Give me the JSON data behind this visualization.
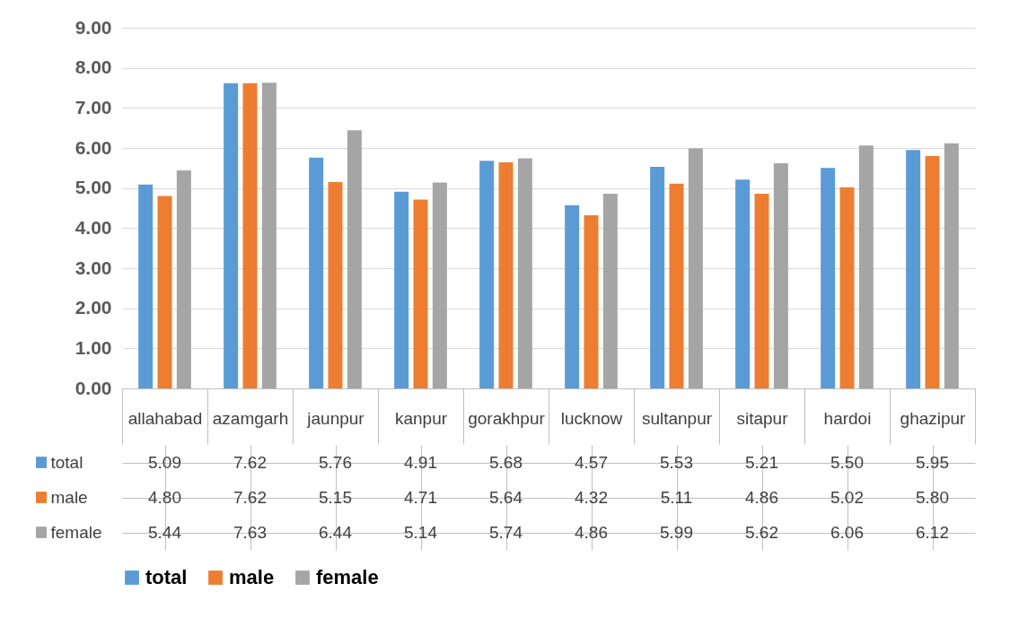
{
  "chart_data": {
    "type": "bar",
    "categories": [
      "allahabad",
      "azamgarh",
      "jaunpur",
      "kanpur",
      "gorakhpur",
      "lucknow",
      "sultanpur",
      "sitapur",
      "hardoi",
      "ghazipur"
    ],
    "series": [
      {
        "name": "total",
        "color": "#5b9bd5",
        "values": [
          5.09,
          7.62,
          5.76,
          4.91,
          5.68,
          4.57,
          5.53,
          5.21,
          5.5,
          5.95
        ],
        "value_labels": [
          "5.09",
          "7.62",
          "5.76",
          "4.91",
          "5.68",
          "4.57",
          "5.53",
          "5.21",
          "5.50",
          "5.95"
        ]
      },
      {
        "name": "male",
        "color": "#ed7d31",
        "values": [
          4.8,
          7.62,
          5.15,
          4.71,
          5.64,
          4.32,
          5.11,
          4.86,
          5.02,
          5.8
        ],
        "value_labels": [
          "4.80",
          "7.62",
          "5.15",
          "4.71",
          "5.64",
          "4.32",
          "5.11",
          "4.86",
          "5.02",
          "5.80"
        ]
      },
      {
        "name": "female",
        "color": "#a5a5a5",
        "values": [
          5.44,
          7.63,
          6.44,
          5.14,
          5.74,
          4.86,
          5.99,
          5.62,
          6.06,
          6.12
        ],
        "value_labels": [
          "5.44",
          "7.63",
          "6.44",
          "5.14",
          "5.74",
          "4.86",
          "5.99",
          "5.62",
          "6.06",
          "6.12"
        ]
      }
    ],
    "ylim": [
      0,
      9
    ],
    "yticks": [
      {
        "value": 0,
        "label": "0.00"
      },
      {
        "value": 1,
        "label": "1.00"
      },
      {
        "value": 2,
        "label": "2.00"
      },
      {
        "value": 3,
        "label": "3.00"
      },
      {
        "value": 4,
        "label": "4.00"
      },
      {
        "value": 5,
        "label": "5.00"
      },
      {
        "value": 6,
        "label": "6.00"
      },
      {
        "value": 7,
        "label": "7.00"
      },
      {
        "value": 8,
        "label": "8.00"
      },
      {
        "value": 9,
        "label": "9.00"
      }
    ],
    "grid": "y",
    "legend": "bottom"
  }
}
